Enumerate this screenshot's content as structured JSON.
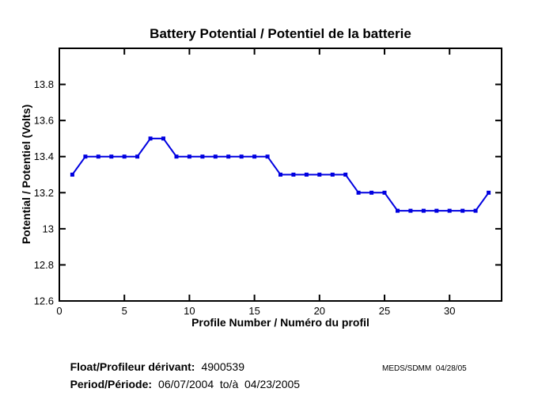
{
  "figure": {
    "footer": {
      "float_label": "Float/Profileur dérivant:",
      "float_value": "4900539",
      "period_label": "Period/Période:",
      "period_value": "06/07/2004  to/à  04/23/2005",
      "credit": "MEDS/SDMM  04/28/05"
    }
  },
  "chart_data": {
    "type": "line",
    "title": "Battery Potential / Potentiel de la batterie",
    "xlabel": "Profile Number / Numéro du profil",
    "ylabel": "Potential / Potentiel (Volts)",
    "xlim": [
      0,
      34
    ],
    "ylim": [
      12.6,
      14.0
    ],
    "grid": false,
    "legend": null,
    "line_color": "#0000e0",
    "marker": "square",
    "xticks": {
      "values": [
        0,
        5,
        10,
        15,
        20,
        25,
        30
      ],
      "labels": [
        "0",
        "5",
        "10",
        "15",
        "20",
        "25",
        "30"
      ]
    },
    "yticks": {
      "values": [
        12.6,
        12.8,
        13.0,
        13.2,
        13.4,
        13.6,
        13.8
      ],
      "labels": [
        "12.6",
        "12.8",
        "13",
        "13.2",
        "13.4",
        "13.6",
        "13.8"
      ]
    },
    "x": [
      1,
      2,
      3,
      4,
      5,
      6,
      7,
      8,
      9,
      10,
      11,
      12,
      13,
      14,
      15,
      16,
      17,
      18,
      19,
      20,
      21,
      22,
      23,
      24,
      25,
      26,
      27,
      28,
      29,
      30,
      31,
      32,
      33
    ],
    "y": [
      13.3,
      13.4,
      13.4,
      13.4,
      13.4,
      13.4,
      13.5,
      13.5,
      13.4,
      13.4,
      13.4,
      13.4,
      13.4,
      13.4,
      13.4,
      13.4,
      13.3,
      13.3,
      13.3,
      13.3,
      13.3,
      13.3,
      13.2,
      13.2,
      13.2,
      13.1,
      13.1,
      13.1,
      13.1,
      13.1,
      13.1,
      13.1,
      13.2
    ]
  }
}
